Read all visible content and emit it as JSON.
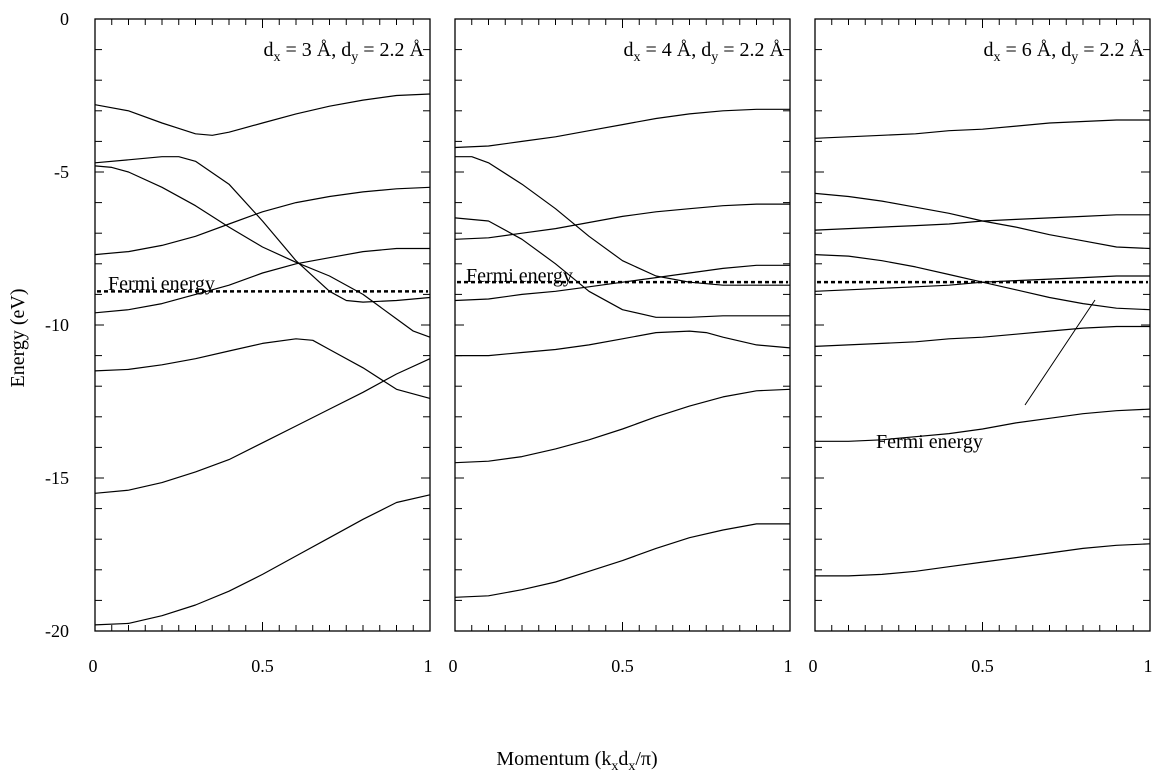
{
  "figure": {
    "ylabel": "Energy (eV)",
    "xlabel_parts": {
      "pre": "Momentum (k",
      "s1": "x",
      "mid": "d",
      "s2": "x",
      "post": "/π)"
    },
    "fermi_label": "Fermi energy"
  },
  "chart_data": [
    {
      "type": "line",
      "title_parts": {
        "a": "d",
        "as": "x",
        "b": " = 3 Å, d",
        "bs": "y",
        "c": " = 2.2 Å"
      },
      "xlim": [
        0,
        1
      ],
      "ylim": [
        -20,
        0
      ],
      "x_ticks": [
        "0",
        "0.5",
        "1"
      ],
      "y_ticks": [
        "0",
        "-5",
        "-10",
        "-15",
        "-20"
      ],
      "fermi_energy": -8.9,
      "series": [
        {
          "x": [
            0,
            0.1,
            0.2,
            0.3,
            0.35,
            0.4,
            0.5,
            0.6,
            0.7,
            0.8,
            0.9,
            1.0
          ],
          "y": [
            -2.8,
            -3.0,
            -3.4,
            -3.75,
            -3.8,
            -3.7,
            -3.4,
            -3.1,
            -2.85,
            -2.65,
            -2.5,
            -2.45
          ]
        },
        {
          "x": [
            0,
            0.1,
            0.2,
            0.25,
            0.3,
            0.4,
            0.5,
            0.6,
            0.7,
            0.75,
            0.8,
            0.9,
            1.0
          ],
          "y": [
            -4.7,
            -4.6,
            -4.5,
            -4.5,
            -4.65,
            -5.4,
            -6.6,
            -7.9,
            -8.9,
            -9.2,
            -9.25,
            -9.2,
            -9.1
          ]
        },
        {
          "x": [
            0,
            0.05,
            0.1,
            0.2,
            0.3,
            0.4,
            0.5,
            0.6,
            0.7,
            0.8,
            0.9,
            0.95,
            1.0
          ],
          "y": [
            -4.8,
            -4.85,
            -5.0,
            -5.5,
            -6.1,
            -6.8,
            -7.45,
            -7.95,
            -8.4,
            -9.0,
            -9.8,
            -10.2,
            -10.4
          ]
        },
        {
          "x": [
            0,
            0.1,
            0.2,
            0.3,
            0.4,
            0.5,
            0.6,
            0.7,
            0.8,
            0.9,
            1.0
          ],
          "y": [
            -7.7,
            -7.6,
            -7.4,
            -7.1,
            -6.7,
            -6.3,
            -6.0,
            -5.8,
            -5.65,
            -5.55,
            -5.5
          ]
        },
        {
          "x": [
            0,
            0.1,
            0.2,
            0.3,
            0.4,
            0.5,
            0.6,
            0.7,
            0.8,
            0.9,
            1.0
          ],
          "y": [
            -9.6,
            -9.5,
            -9.3,
            -9.0,
            -8.7,
            -8.3,
            -8.0,
            -7.8,
            -7.6,
            -7.5,
            -7.5
          ]
        },
        {
          "x": [
            0,
            0.1,
            0.2,
            0.3,
            0.4,
            0.5,
            0.6,
            0.65,
            0.7,
            0.8,
            0.9,
            1.0
          ],
          "y": [
            -11.5,
            -11.45,
            -11.3,
            -11.1,
            -10.85,
            -10.6,
            -10.45,
            -10.5,
            -10.8,
            -11.4,
            -12.1,
            -12.4
          ]
        },
        {
          "x": [
            0,
            0.1,
            0.2,
            0.3,
            0.4,
            0.5,
            0.6,
            0.7,
            0.8,
            0.9,
            1.0
          ],
          "y": [
            -15.5,
            -15.4,
            -15.15,
            -14.8,
            -14.4,
            -13.85,
            -13.3,
            -12.75,
            -12.2,
            -11.6,
            -11.1
          ]
        },
        {
          "x": [
            0,
            0.1,
            0.2,
            0.3,
            0.4,
            0.5,
            0.6,
            0.7,
            0.8,
            0.9,
            1.0
          ],
          "y": [
            -19.8,
            -19.75,
            -19.5,
            -19.15,
            -18.7,
            -18.15,
            -17.55,
            -16.95,
            -16.35,
            -15.8,
            -15.55
          ]
        }
      ]
    },
    {
      "type": "line",
      "title_parts": {
        "a": "d",
        "as": "x",
        "b": " = 4 Å, d",
        "bs": "y",
        "c": " = 2.2 Å"
      },
      "xlim": [
        0,
        1
      ],
      "ylim": [
        -20,
        0
      ],
      "x_ticks": [
        "0",
        "0.5",
        "1"
      ],
      "y_ticks": [
        "0",
        "-5",
        "-10",
        "-15",
        "-20"
      ],
      "fermi_energy": -8.6,
      "series": [
        {
          "x": [
            0,
            0.1,
            0.2,
            0.3,
            0.4,
            0.5,
            0.6,
            0.7,
            0.8,
            0.9,
            1.0
          ],
          "y": [
            -4.2,
            -4.15,
            -4.0,
            -3.85,
            -3.65,
            -3.45,
            -3.25,
            -3.1,
            -3.0,
            -2.95,
            -2.95
          ]
        },
        {
          "x": [
            0,
            0.05,
            0.1,
            0.2,
            0.3,
            0.4,
            0.5,
            0.6,
            0.7,
            0.8,
            0.9,
            1.0
          ],
          "y": [
            -4.5,
            -4.5,
            -4.7,
            -5.4,
            -6.2,
            -7.1,
            -7.9,
            -8.4,
            -8.6,
            -8.7,
            -8.7,
            -8.7
          ]
        },
        {
          "x": [
            0,
            0.1,
            0.2,
            0.3,
            0.4,
            0.5,
            0.6,
            0.7,
            0.8,
            0.9,
            1.0
          ],
          "y": [
            -6.5,
            -6.6,
            -7.2,
            -8.0,
            -8.9,
            -9.5,
            -9.75,
            -9.75,
            -9.7,
            -9.7,
            -9.7
          ]
        },
        {
          "x": [
            0,
            0.1,
            0.2,
            0.3,
            0.4,
            0.5,
            0.6,
            0.7,
            0.8,
            0.9,
            1.0
          ],
          "y": [
            -7.2,
            -7.15,
            -7.0,
            -6.85,
            -6.65,
            -6.45,
            -6.3,
            -6.2,
            -6.1,
            -6.05,
            -6.05
          ]
        },
        {
          "x": [
            0,
            0.1,
            0.2,
            0.3,
            0.4,
            0.5,
            0.6,
            0.7,
            0.8,
            0.9,
            1.0
          ],
          "y": [
            -9.2,
            -9.15,
            -9.0,
            -8.9,
            -8.75,
            -8.6,
            -8.45,
            -8.3,
            -8.15,
            -8.05,
            -8.05
          ]
        },
        {
          "x": [
            0,
            0.1,
            0.2,
            0.3,
            0.4,
            0.5,
            0.6,
            0.7,
            0.75,
            0.8,
            0.9,
            1.0
          ],
          "y": [
            -11.0,
            -11.0,
            -10.9,
            -10.8,
            -10.65,
            -10.45,
            -10.25,
            -10.2,
            -10.25,
            -10.4,
            -10.65,
            -10.75
          ]
        },
        {
          "x": [
            0,
            0.1,
            0.2,
            0.3,
            0.4,
            0.5,
            0.6,
            0.7,
            0.8,
            0.9,
            1.0
          ],
          "y": [
            -14.5,
            -14.45,
            -14.3,
            -14.05,
            -13.75,
            -13.4,
            -13.0,
            -12.65,
            -12.35,
            -12.15,
            -12.1
          ]
        },
        {
          "x": [
            0,
            0.1,
            0.2,
            0.3,
            0.4,
            0.5,
            0.6,
            0.7,
            0.8,
            0.9,
            1.0
          ],
          "y": [
            -18.9,
            -18.85,
            -18.65,
            -18.4,
            -18.05,
            -17.7,
            -17.3,
            -16.95,
            -16.7,
            -16.5,
            -16.5
          ]
        }
      ]
    },
    {
      "type": "line",
      "title_parts": {
        "a": "d",
        "as": "x",
        "b": " = 6 Å, d",
        "bs": "y",
        "c": " = 2.2 Å"
      },
      "xlim": [
        0,
        1
      ],
      "ylim": [
        -20,
        0
      ],
      "x_ticks": [
        "0",
        "0.5",
        "1"
      ],
      "y_ticks": [
        "0",
        "-5",
        "-10",
        "-15",
        "-20"
      ],
      "fermi_energy": -8.6,
      "series": [
        {
          "x": [
            0,
            0.1,
            0.2,
            0.3,
            0.4,
            0.5,
            0.6,
            0.7,
            0.8,
            0.9,
            1.0
          ],
          "y": [
            -3.9,
            -3.85,
            -3.8,
            -3.75,
            -3.65,
            -3.6,
            -3.5,
            -3.4,
            -3.35,
            -3.3,
            -3.3
          ]
        },
        {
          "x": [
            0,
            0.1,
            0.2,
            0.3,
            0.4,
            0.5,
            0.6,
            0.7,
            0.8,
            0.9,
            1.0
          ],
          "y": [
            -5.7,
            -5.8,
            -5.95,
            -6.15,
            -6.35,
            -6.6,
            -6.8,
            -7.05,
            -7.25,
            -7.45,
            -7.5
          ]
        },
        {
          "x": [
            0,
            0.1,
            0.2,
            0.3,
            0.4,
            0.5,
            0.6,
            0.7,
            0.8,
            0.9,
            1.0
          ],
          "y": [
            -6.9,
            -6.85,
            -6.8,
            -6.75,
            -6.7,
            -6.6,
            -6.55,
            -6.5,
            -6.45,
            -6.4,
            -6.4
          ]
        },
        {
          "x": [
            0,
            0.1,
            0.2,
            0.3,
            0.4,
            0.5,
            0.6,
            0.7,
            0.8,
            0.9,
            1.0
          ],
          "y": [
            -7.7,
            -7.75,
            -7.9,
            -8.1,
            -8.35,
            -8.6,
            -8.85,
            -9.1,
            -9.3,
            -9.45,
            -9.5
          ]
        },
        {
          "x": [
            0,
            0.1,
            0.2,
            0.3,
            0.4,
            0.5,
            0.6,
            0.7,
            0.8,
            0.9,
            1.0
          ],
          "y": [
            -8.9,
            -8.85,
            -8.8,
            -8.75,
            -8.7,
            -8.6,
            -8.55,
            -8.5,
            -8.45,
            -8.4,
            -8.4
          ]
        },
        {
          "x": [
            0,
            0.1,
            0.2,
            0.3,
            0.4,
            0.5,
            0.6,
            0.7,
            0.8,
            0.9,
            1.0
          ],
          "y": [
            -10.7,
            -10.65,
            -10.6,
            -10.55,
            -10.45,
            -10.4,
            -10.3,
            -10.2,
            -10.1,
            -10.05,
            -10.05
          ]
        },
        {
          "x": [
            0,
            0.1,
            0.2,
            0.3,
            0.4,
            0.5,
            0.6,
            0.7,
            0.8,
            0.9,
            1.0
          ],
          "y": [
            -13.8,
            -13.8,
            -13.75,
            -13.65,
            -13.55,
            -13.4,
            -13.2,
            -13.05,
            -12.9,
            -12.8,
            -12.75
          ]
        },
        {
          "x": [
            0,
            0.1,
            0.2,
            0.3,
            0.4,
            0.5,
            0.6,
            0.7,
            0.8,
            0.9,
            1.0
          ],
          "y": [
            -18.2,
            -18.2,
            -18.15,
            -18.05,
            -17.9,
            -17.75,
            -17.6,
            -17.45,
            -17.3,
            -17.2,
            -17.15
          ]
        }
      ]
    }
  ]
}
